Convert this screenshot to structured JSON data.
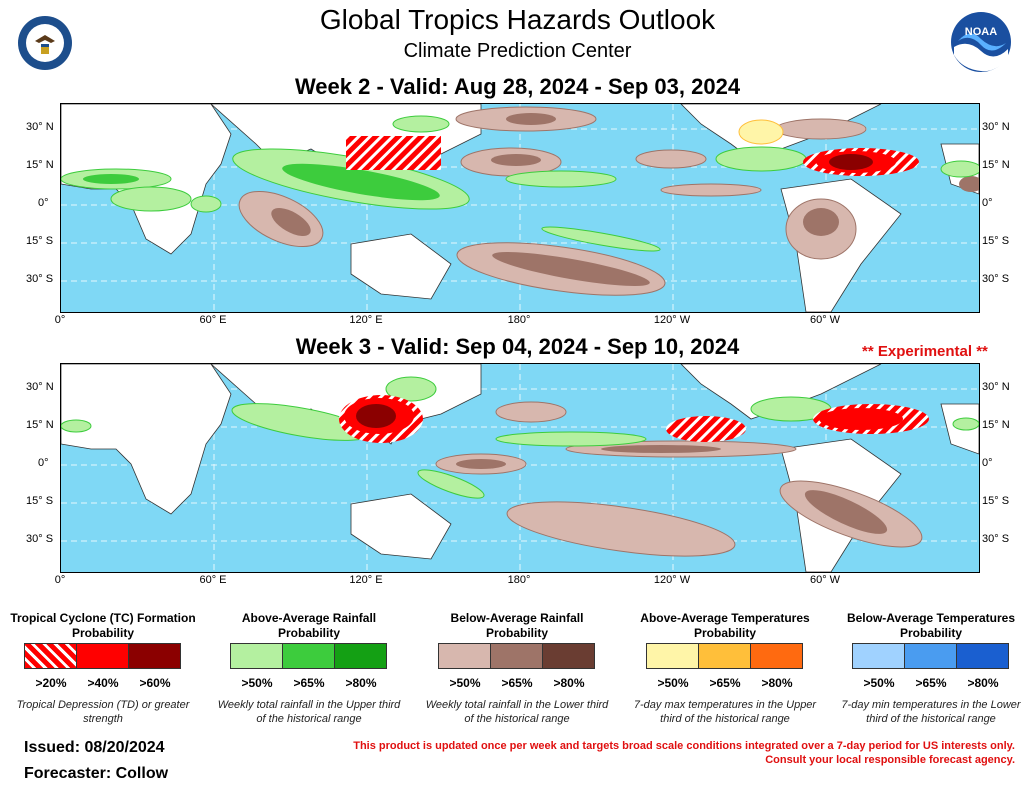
{
  "header": {
    "title": "Global Tropics Hazards Outlook",
    "subtitle": "Climate Prediction Center",
    "doc_logo_text": "DEPARTMENT OF COMMERCE · UNITED STATES OF AMERICA",
    "noaa_logo_text": "NOAA"
  },
  "weeks": [
    {
      "title": "Week 2 - Valid: Aug 28, 2024 - Sep 03, 2024",
      "badge": ""
    },
    {
      "title": "Week 3 - Valid: Sep 04, 2024 - Sep 10, 2024",
      "badge": "** Experimental **"
    }
  ],
  "axes": {
    "lat_labels": [
      "30° N",
      "15° N",
      "0°",
      "15° S",
      "30° S"
    ],
    "lon_labels": [
      "0°",
      "60° E",
      "120° E",
      "180°",
      "120° W",
      "60° W"
    ]
  },
  "legend": [
    {
      "title": "Tropical Cyclone (TC) Formation Probability",
      "labels": [
        ">20%",
        ">40%",
        ">60%"
      ],
      "colors": [
        "hatch-red",
        "#ff0000",
        "#8b0000"
      ],
      "note": "Tropical Depression (TD) or greater strength"
    },
    {
      "title": "Above-Average Rainfall Probability",
      "labels": [
        ">50%",
        ">65%",
        ">80%"
      ],
      "colors": [
        "#b4f0a0",
        "#3dcc3d",
        "#14a014"
      ],
      "note": "Weekly total rainfall in the Upper third of the historical range"
    },
    {
      "title": "Below-Average Rainfall Probability",
      "labels": [
        ">50%",
        ">65%",
        ">80%"
      ],
      "colors": [
        "#d7b7ae",
        "#9e7468",
        "#6a3d32"
      ],
      "note": "Weekly total rainfall in the Lower third of the historical range"
    },
    {
      "title": "Above-Average Temperatures Probability",
      "labels": [
        ">50%",
        ">65%",
        ">80%"
      ],
      "colors": [
        "#fff5a8",
        "#ffbf3a",
        "#ff6a10"
      ],
      "note": "7-day max temperatures in the Upper third of the historical range"
    },
    {
      "title": "Below-Average Temperatures Probability",
      "labels": [
        ">50%",
        ">65%",
        ">80%"
      ],
      "colors": [
        "#a0d2ff",
        "#4a9cf0",
        "#1a5fd0"
      ],
      "note": "7-day min temperatures in the Lower third of the historical range"
    }
  ],
  "footer": {
    "issued": "Issued: 08/20/2024",
    "forecaster": "Forecaster: Collow",
    "note_line1": "This product is updated once per week and targets broad scale conditions integrated over a 7-day period for US interests only.",
    "note_line2": "Consult your local responsible forecast agency."
  },
  "colors": {
    "ocean": "#7fd8f5",
    "land": "#ffffff",
    "warning_text": "#e01010"
  }
}
